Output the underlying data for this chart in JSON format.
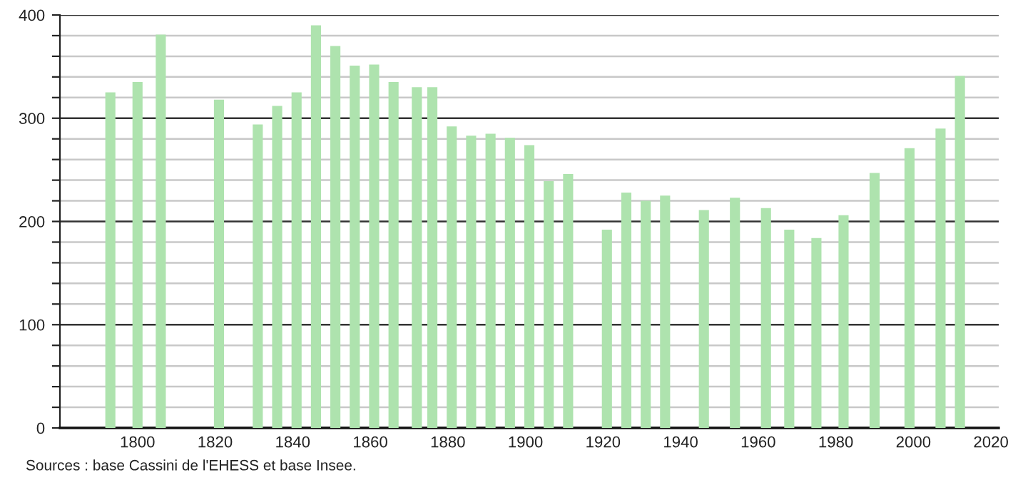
{
  "chart_data": {
    "type": "bar",
    "color": "#aee3ae",
    "x": [
      1793,
      1800,
      1806,
      1821,
      1831,
      1836,
      1841,
      1846,
      1851,
      1856,
      1861,
      1866,
      1872,
      1876,
      1881,
      1886,
      1891,
      1896,
      1901,
      1906,
      1911,
      1921,
      1926,
      1931,
      1936,
      1946,
      1954,
      1962,
      1968,
      1975,
      1982,
      1990,
      1999,
      2007,
      2012
    ],
    "values": [
      325,
      335,
      381,
      318,
      294,
      312,
      325,
      390,
      370,
      351,
      352,
      335,
      330,
      330,
      292,
      283,
      285,
      281,
      274,
      239,
      246,
      192,
      228,
      220,
      225,
      211,
      223,
      213,
      192,
      184,
      206,
      247,
      271,
      290,
      341
    ],
    "xlim": [
      1780,
      2022
    ],
    "xticks": [
      1800,
      1820,
      1840,
      1860,
      1880,
      1900,
      1920,
      1940,
      1960,
      1980,
      2000,
      2020
    ],
    "ylim": [
      0,
      400
    ],
    "yticks": [
      0,
      {
        "value": 20,
        "label": null
      },
      {
        "value": 40,
        "label": null
      },
      {
        "value": 60,
        "label": null
      },
      {
        "value": 80,
        "label": null
      },
      100,
      {
        "value": 120,
        "label": null
      },
      {
        "value": 140,
        "label": null
      },
      {
        "value": 160,
        "label": null
      },
      {
        "value": 180,
        "label": null
      },
      200,
      {
        "value": 220,
        "label": null
      },
      {
        "value": 240,
        "label": null
      },
      {
        "value": 260,
        "label": null
      },
      {
        "value": 280,
        "label": null
      },
      300,
      {
        "value": 320,
        "label": null
      },
      {
        "value": 340,
        "label": null
      },
      {
        "value": 360,
        "label": null
      },
      {
        "value": 380,
        "label": null
      },
      400
    ],
    "grid": "y",
    "annotations": [
      "Sources : base Cassini de l'EHESS et base Insee."
    ]
  }
}
